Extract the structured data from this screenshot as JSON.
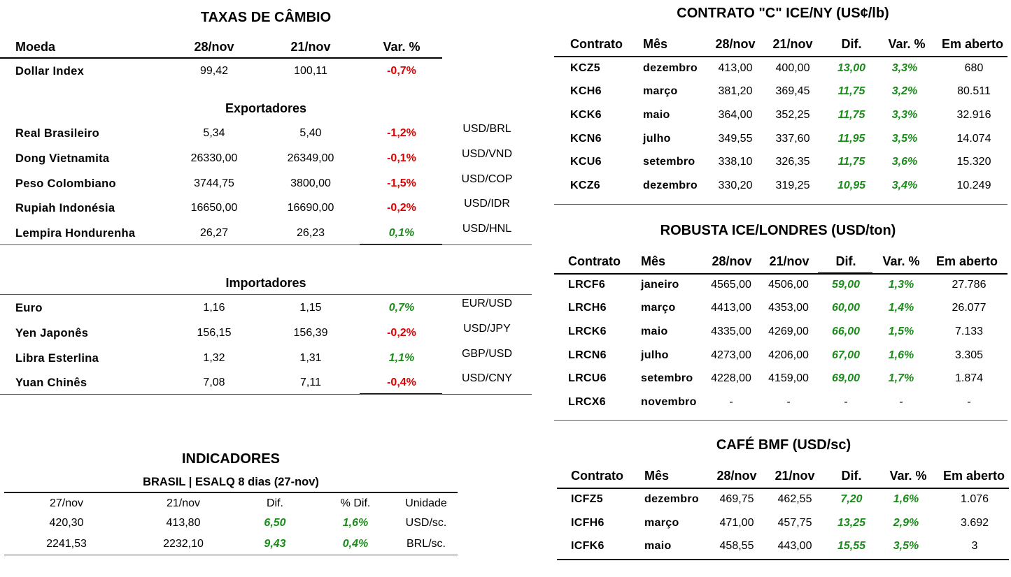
{
  "fx": {
    "title": "TAXAS DE CÂMBIO",
    "headers": [
      "Moeda",
      "28/nov",
      "21/nov",
      "Var. %"
    ],
    "dollar_index": {
      "name": "Dollar Index",
      "v1": "99,42",
      "v2": "100,11",
      "var": "-0,7%",
      "dir": "neg"
    },
    "exporters_title": "Exportadores",
    "exporters": [
      {
        "name": "Real Brasileiro",
        "v1": "5,34",
        "v2": "5,40",
        "var": "-1,2%",
        "dir": "neg",
        "pair": "USD/BRL"
      },
      {
        "name": "Dong Vietnamita",
        "v1": "26330,00",
        "v2": "26349,00",
        "var": "-0,1%",
        "dir": "neg",
        "pair": "USD/VND"
      },
      {
        "name": "Peso Colombiano",
        "v1": "3744,75",
        "v2": "3800,00",
        "var": "-1,5%",
        "dir": "neg",
        "pair": "USD/COP"
      },
      {
        "name": "Rupiah Indonésia",
        "v1": "16650,00",
        "v2": "16690,00",
        "var": "-0,2%",
        "dir": "neg",
        "pair": "USD/IDR"
      },
      {
        "name": "Lempira Hondurenha",
        "v1": "26,27",
        "v2": "26,23",
        "var": "0,1%",
        "dir": "pos",
        "pair": "USD/HNL"
      }
    ],
    "importers_title": "Importadores",
    "importers": [
      {
        "name": "Euro",
        "v1": "1,16",
        "v2": "1,15",
        "var": "0,7%",
        "dir": "pos",
        "pair": "EUR/USD"
      },
      {
        "name": "Yen Japonês",
        "v1": "156,15",
        "v2": "156,39",
        "var": "-0,2%",
        "dir": "neg",
        "pair": "USD/JPY"
      },
      {
        "name": "Libra Esterlina",
        "v1": "1,32",
        "v2": "1,31",
        "var": "1,1%",
        "dir": "pos",
        "pair": "GBP/USD"
      },
      {
        "name": "Yuan Chinês",
        "v1": "7,08",
        "v2": "7,11",
        "var": "-0,4%",
        "dir": "neg",
        "pair": "USD/CNY"
      }
    ]
  },
  "indicators": {
    "title": "INDICADORES",
    "subtitle": "BRASIL | ESALQ 8 dias (27-nov)",
    "headers": [
      "27/nov",
      "21/nov",
      "Dif.",
      "% Dif.",
      "Unidade"
    ],
    "rows": [
      {
        "v1": "420,30",
        "v2": "413,80",
        "dif": "6,50",
        "pct": "1,6%",
        "unit": "USD/sc."
      },
      {
        "v1": "2241,53",
        "v2": "2232,10",
        "dif": "9,43",
        "pct": "0,4%",
        "unit": "BRL/sc."
      }
    ]
  },
  "futures": {
    "headers": [
      "Contrato",
      "Mês",
      "28/nov",
      "21/nov",
      "Dif.",
      "Var. %",
      "Em aberto"
    ],
    "ice_ny": {
      "title": "CONTRATO \"C\" ICE/NY (US¢/lb)",
      "rows": [
        {
          "code": "KCZ5",
          "month": "dezembro",
          "v1": "413,00",
          "v2": "400,00",
          "dif": "13,00",
          "var": "3,3%",
          "oi": "680"
        },
        {
          "code": "KCH6",
          "month": "março",
          "v1": "381,20",
          "v2": "369,45",
          "dif": "11,75",
          "var": "3,2%",
          "oi": "80.511"
        },
        {
          "code": "KCK6",
          "month": "maio",
          "v1": "364,00",
          "v2": "352,25",
          "dif": "11,75",
          "var": "3,3%",
          "oi": "32.916"
        },
        {
          "code": "KCN6",
          "month": "julho",
          "v1": "349,55",
          "v2": "337,60",
          "dif": "11,95",
          "var": "3,5%",
          "oi": "14.074"
        },
        {
          "code": "KCU6",
          "month": "setembro",
          "v1": "338,10",
          "v2": "326,35",
          "dif": "11,75",
          "var": "3,6%",
          "oi": "15.320"
        },
        {
          "code": "KCZ6",
          "month": "dezembro",
          "v1": "330,20",
          "v2": "319,25",
          "dif": "10,95",
          "var": "3,4%",
          "oi": "10.249"
        }
      ]
    },
    "robusta": {
      "title": "ROBUSTA ICE/LONDRES (USD/ton)",
      "rows": [
        {
          "code": "LRCF6",
          "month": "janeiro",
          "v1": "4565,00",
          "v2": "4506,00",
          "dif": "59,00",
          "var": "1,3%",
          "oi": "27.786"
        },
        {
          "code": "LRCH6",
          "month": "março",
          "v1": "4413,00",
          "v2": "4353,00",
          "dif": "60,00",
          "var": "1,4%",
          "oi": "26.077"
        },
        {
          "code": "LRCK6",
          "month": "maio",
          "v1": "4335,00",
          "v2": "4269,00",
          "dif": "66,00",
          "var": "1,5%",
          "oi": "7.133"
        },
        {
          "code": "LRCN6",
          "month": "julho",
          "v1": "4273,00",
          "v2": "4206,00",
          "dif": "67,00",
          "var": "1,6%",
          "oi": "3.305"
        },
        {
          "code": "LRCU6",
          "month": "setembro",
          "v1": "4228,00",
          "v2": "4159,00",
          "dif": "69,00",
          "var": "1,7%",
          "oi": "1.874"
        },
        {
          "code": "LRCX6",
          "month": "novembro",
          "v1": "-",
          "v2": "-",
          "dif": "-",
          "var": "-",
          "oi": "-"
        }
      ]
    },
    "bmf": {
      "title": "CAFÉ BMF (USD/sc)",
      "rows": [
        {
          "code": "ICFZ5",
          "month": "dezembro",
          "v1": "469,75",
          "v2": "462,55",
          "dif": "7,20",
          "var": "1,6%",
          "oi": "1.076"
        },
        {
          "code": "ICFH6",
          "month": "março",
          "v1": "471,00",
          "v2": "457,75",
          "dif": "13,25",
          "var": "2,9%",
          "oi": "3.692"
        },
        {
          "code": "ICFK6",
          "month": "maio",
          "v1": "458,55",
          "v2": "443,00",
          "dif": "15,55",
          "var": "3,5%",
          "oi": "3"
        }
      ]
    }
  }
}
